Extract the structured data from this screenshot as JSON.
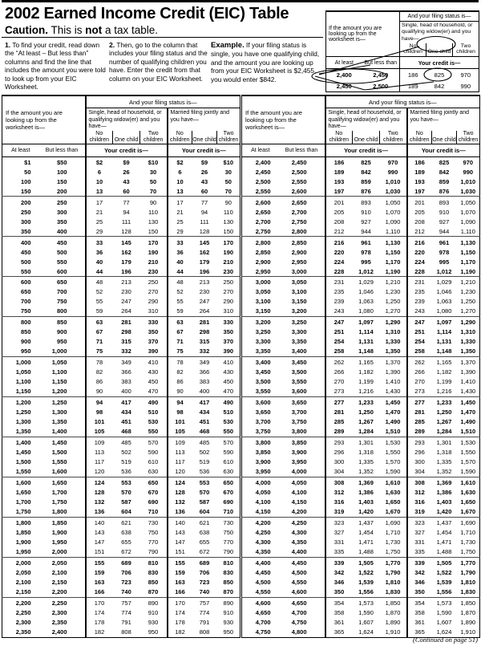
{
  "header": {
    "title": "2002 Earned Income Credit (EIC) Table",
    "caution_bold": "Caution.",
    "caution_mid": " This is ",
    "caution_not": "not",
    "caution_end": " a tax table."
  },
  "instructions": [
    {
      "num": "1.",
      "text": "To find your credit, read down the “At least – But less than” columns and find the line that includes the amount you were told to look up from your EIC Worksheet."
    },
    {
      "num": "2.",
      "text": "Then, go to the column that includes your filing status and the number of qualifying children you have. Enter the credit from that column on your EIC Worksheet."
    }
  ],
  "example": {
    "label": "Example.",
    "text": "If your filing status is single, you have one qualifying child, and the amount you are looking up from your EIC Worksheet is $2,455, you would enter $842."
  },
  "table_headers": {
    "lookup": "If the amount you are looking up from the worksheet is—",
    "filing_status": "And your filing status is—",
    "single_group": "Single, head of household, or qualifying widow(er) and you have—",
    "married_group": "Married filing jointly and you have—",
    "col_no": "No children",
    "col_one": "One child",
    "col_two": "Two children",
    "at_least": "At least",
    "but_less_than": "But less than",
    "credit": "Your credit is—"
  },
  "example_table": {
    "rows": [
      [
        "2,400",
        "2,450",
        "186",
        "825",
        "970"
      ],
      [
        "2,450",
        "2,500",
        "189",
        "842",
        "990"
      ]
    ]
  },
  "tables": {
    "left": {
      "rows": [
        [
          "$1",
          "$50",
          "$2",
          "$9",
          "$10",
          "$2",
          "$9",
          "$10"
        ],
        [
          "50",
          "100",
          "6",
          "26",
          "30",
          "6",
          "26",
          "30"
        ],
        [
          "100",
          "150",
          "10",
          "43",
          "50",
          "10",
          "43",
          "50"
        ],
        [
          "150",
          "200",
          "13",
          "60",
          "70",
          "13",
          "60",
          "70"
        ],
        [
          "200",
          "250",
          "17",
          "77",
          "90",
          "17",
          "77",
          "90"
        ],
        [
          "250",
          "300",
          "21",
          "94",
          "110",
          "21",
          "94",
          "110"
        ],
        [
          "300",
          "350",
          "25",
          "111",
          "130",
          "25",
          "111",
          "130"
        ],
        [
          "350",
          "400",
          "29",
          "128",
          "150",
          "29",
          "128",
          "150"
        ],
        [
          "400",
          "450",
          "33",
          "145",
          "170",
          "33",
          "145",
          "170"
        ],
        [
          "450",
          "500",
          "36",
          "162",
          "190",
          "36",
          "162",
          "190"
        ],
        [
          "500",
          "550",
          "40",
          "179",
          "210",
          "40",
          "179",
          "210"
        ],
        [
          "550",
          "600",
          "44",
          "196",
          "230",
          "44",
          "196",
          "230"
        ],
        [
          "600",
          "650",
          "48",
          "213",
          "250",
          "48",
          "213",
          "250"
        ],
        [
          "650",
          "700",
          "52",
          "230",
          "270",
          "52",
          "230",
          "270"
        ],
        [
          "700",
          "750",
          "55",
          "247",
          "290",
          "55",
          "247",
          "290"
        ],
        [
          "750",
          "800",
          "59",
          "264",
          "310",
          "59",
          "264",
          "310"
        ],
        [
          "800",
          "850",
          "63",
          "281",
          "330",
          "63",
          "281",
          "330"
        ],
        [
          "850",
          "900",
          "67",
          "298",
          "350",
          "67",
          "298",
          "350"
        ],
        [
          "900",
          "950",
          "71",
          "315",
          "370",
          "71",
          "315",
          "370"
        ],
        [
          "950",
          "1,000",
          "75",
          "332",
          "390",
          "75",
          "332",
          "390"
        ],
        [
          "1,000",
          "1,050",
          "78",
          "349",
          "410",
          "78",
          "349",
          "410"
        ],
        [
          "1,050",
          "1,100",
          "82",
          "366",
          "430",
          "82",
          "366",
          "430"
        ],
        [
          "1,100",
          "1,150",
          "86",
          "383",
          "450",
          "86",
          "383",
          "450"
        ],
        [
          "1,150",
          "1,200",
          "90",
          "400",
          "470",
          "90",
          "400",
          "470"
        ],
        [
          "1,200",
          "1,250",
          "94",
          "417",
          "490",
          "94",
          "417",
          "490"
        ],
        [
          "1,250",
          "1,300",
          "98",
          "434",
          "510",
          "98",
          "434",
          "510"
        ],
        [
          "1,300",
          "1,350",
          "101",
          "451",
          "530",
          "101",
          "451",
          "530"
        ],
        [
          "1,350",
          "1,400",
          "105",
          "468",
          "550",
          "105",
          "468",
          "550"
        ],
        [
          "1,400",
          "1,450",
          "109",
          "485",
          "570",
          "109",
          "485",
          "570"
        ],
        [
          "1,450",
          "1,500",
          "113",
          "502",
          "590",
          "113",
          "502",
          "590"
        ],
        [
          "1,500",
          "1,550",
          "117",
          "519",
          "610",
          "117",
          "519",
          "610"
        ],
        [
          "1,550",
          "1,600",
          "120",
          "536",
          "630",
          "120",
          "536",
          "630"
        ],
        [
          "1,600",
          "1,650",
          "124",
          "553",
          "650",
          "124",
          "553",
          "650"
        ],
        [
          "1,650",
          "1,700",
          "128",
          "570",
          "670",
          "128",
          "570",
          "670"
        ],
        [
          "1,700",
          "1,750",
          "132",
          "587",
          "690",
          "132",
          "587",
          "690"
        ],
        [
          "1,750",
          "1,800",
          "136",
          "604",
          "710",
          "136",
          "604",
          "710"
        ],
        [
          "1,800",
          "1,850",
          "140",
          "621",
          "730",
          "140",
          "621",
          "730"
        ],
        [
          "1,850",
          "1,900",
          "143",
          "638",
          "750",
          "143",
          "638",
          "750"
        ],
        [
          "1,900",
          "1,950",
          "147",
          "655",
          "770",
          "147",
          "655",
          "770"
        ],
        [
          "1,950",
          "2,000",
          "151",
          "672",
          "790",
          "151",
          "672",
          "790"
        ],
        [
          "2,000",
          "2,050",
          "155",
          "689",
          "810",
          "155",
          "689",
          "810"
        ],
        [
          "2,050",
          "2,100",
          "159",
          "706",
          "830",
          "159",
          "706",
          "830"
        ],
        [
          "2,100",
          "2,150",
          "163",
          "723",
          "850",
          "163",
          "723",
          "850"
        ],
        [
          "2,150",
          "2,200",
          "166",
          "740",
          "870",
          "166",
          "740",
          "870"
        ],
        [
          "2,200",
          "2,250",
          "170",
          "757",
          "890",
          "170",
          "757",
          "890"
        ],
        [
          "2,250",
          "2,300",
          "174",
          "774",
          "910",
          "174",
          "774",
          "910"
        ],
        [
          "2,300",
          "2,350",
          "178",
          "791",
          "930",
          "178",
          "791",
          "930"
        ],
        [
          "2,350",
          "2,400",
          "182",
          "808",
          "950",
          "182",
          "808",
          "950"
        ]
      ]
    },
    "right": {
      "rows": [
        [
          "2,400",
          "2,450",
          "186",
          "825",
          "970",
          "186",
          "825",
          "970"
        ],
        [
          "2,450",
          "2,500",
          "189",
          "842",
          "990",
          "189",
          "842",
          "990"
        ],
        [
          "2,500",
          "2,550",
          "193",
          "859",
          "1,010",
          "193",
          "859",
          "1,010"
        ],
        [
          "2,550",
          "2,600",
          "197",
          "876",
          "1,030",
          "197",
          "876",
          "1,030"
        ],
        [
          "2,600",
          "2,650",
          "201",
          "893",
          "1,050",
          "201",
          "893",
          "1,050"
        ],
        [
          "2,650",
          "2,700",
          "205",
          "910",
          "1,070",
          "205",
          "910",
          "1,070"
        ],
        [
          "2,700",
          "2,750",
          "208",
          "927",
          "1,090",
          "208",
          "927",
          "1,090"
        ],
        [
          "2,750",
          "2,800",
          "212",
          "944",
          "1,110",
          "212",
          "944",
          "1,110"
        ],
        [
          "2,800",
          "2,850",
          "216",
          "961",
          "1,130",
          "216",
          "961",
          "1,130"
        ],
        [
          "2,850",
          "2,900",
          "220",
          "978",
          "1,150",
          "220",
          "978",
          "1,150"
        ],
        [
          "2,900",
          "2,950",
          "224",
          "995",
          "1,170",
          "224",
          "995",
          "1,170"
        ],
        [
          "2,950",
          "3,000",
          "228",
          "1,012",
          "1,190",
          "228",
          "1,012",
          "1,190"
        ],
        [
          "3,000",
          "3,050",
          "231",
          "1,029",
          "1,210",
          "231",
          "1,029",
          "1,210"
        ],
        [
          "3,050",
          "3,100",
          "235",
          "1,046",
          "1,230",
          "235",
          "1,046",
          "1,230"
        ],
        [
          "3,100",
          "3,150",
          "239",
          "1,063",
          "1,250",
          "239",
          "1,063",
          "1,250"
        ],
        [
          "3,150",
          "3,200",
          "243",
          "1,080",
          "1,270",
          "243",
          "1,080",
          "1,270"
        ],
        [
          "3,200",
          "3,250",
          "247",
          "1,097",
          "1,290",
          "247",
          "1,097",
          "1,290"
        ],
        [
          "3,250",
          "3,300",
          "251",
          "1,114",
          "1,310",
          "251",
          "1,114",
          "1,310"
        ],
        [
          "3,300",
          "3,350",
          "254",
          "1,131",
          "1,330",
          "254",
          "1,131",
          "1,330"
        ],
        [
          "3,350",
          "3,400",
          "258",
          "1,148",
          "1,350",
          "258",
          "1,148",
          "1,350"
        ],
        [
          "3,400",
          "3,450",
          "262",
          "1,165",
          "1,370",
          "262",
          "1,165",
          "1,370"
        ],
        [
          "3,450",
          "3,500",
          "266",
          "1,182",
          "1,390",
          "266",
          "1,182",
          "1,390"
        ],
        [
          "3,500",
          "3,550",
          "270",
          "1,199",
          "1,410",
          "270",
          "1,199",
          "1,410"
        ],
        [
          "3,550",
          "3,600",
          "273",
          "1,216",
          "1,430",
          "273",
          "1,216",
          "1,430"
        ],
        [
          "3,600",
          "3,650",
          "277",
          "1,233",
          "1,450",
          "277",
          "1,233",
          "1,450"
        ],
        [
          "3,650",
          "3,700",
          "281",
          "1,250",
          "1,470",
          "281",
          "1,250",
          "1,470"
        ],
        [
          "3,700",
          "3,750",
          "285",
          "1,267",
          "1,490",
          "285",
          "1,267",
          "1,490"
        ],
        [
          "3,750",
          "3,800",
          "289",
          "1,284",
          "1,510",
          "289",
          "1,284",
          "1,510"
        ],
        [
          "3,800",
          "3,850",
          "293",
          "1,301",
          "1,530",
          "293",
          "1,301",
          "1,530"
        ],
        [
          "3,850",
          "3,900",
          "296",
          "1,318",
          "1,550",
          "296",
          "1,318",
          "1,550"
        ],
        [
          "3,900",
          "3,950",
          "300",
          "1,335",
          "1,570",
          "300",
          "1,335",
          "1,570"
        ],
        [
          "3,950",
          "4,000",
          "304",
          "1,352",
          "1,590",
          "304",
          "1,352",
          "1,590"
        ],
        [
          "4,000",
          "4,050",
          "308",
          "1,369",
          "1,610",
          "308",
          "1,369",
          "1,610"
        ],
        [
          "4,050",
          "4,100",
          "312",
          "1,386",
          "1,630",
          "312",
          "1,386",
          "1,630"
        ],
        [
          "4,100",
          "4,150",
          "316",
          "1,403",
          "1,650",
          "316",
          "1,403",
          "1,650"
        ],
        [
          "4,150",
          "4,200",
          "319",
          "1,420",
          "1,670",
          "319",
          "1,420",
          "1,670"
        ],
        [
          "4,200",
          "4,250",
          "323",
          "1,437",
          "1,690",
          "323",
          "1,437",
          "1,690"
        ],
        [
          "4,250",
          "4,300",
          "327",
          "1,454",
          "1,710",
          "327",
          "1,454",
          "1,710"
        ],
        [
          "4,300",
          "4,350",
          "331",
          "1,471",
          "1,730",
          "331",
          "1,471",
          "1,730"
        ],
        [
          "4,350",
          "4,400",
          "335",
          "1,488",
          "1,750",
          "335",
          "1,488",
          "1,750"
        ],
        [
          "4,400",
          "4,450",
          "339",
          "1,505",
          "1,770",
          "339",
          "1,505",
          "1,770"
        ],
        [
          "4,450",
          "4,500",
          "342",
          "1,522",
          "1,790",
          "342",
          "1,522",
          "1,790"
        ],
        [
          "4,500",
          "4,550",
          "346",
          "1,539",
          "1,810",
          "346",
          "1,539",
          "1,810"
        ],
        [
          "4,550",
          "4,600",
          "350",
          "1,556",
          "1,830",
          "350",
          "1,556",
          "1,830"
        ],
        [
          "4,600",
          "4,650",
          "354",
          "1,573",
          "1,850",
          "354",
          "1,573",
          "1,850"
        ],
        [
          "4,650",
          "4,700",
          "358",
          "1,590",
          "1,870",
          "358",
          "1,590",
          "1,870"
        ],
        [
          "4,700",
          "4,750",
          "361",
          "1,607",
          "1,890",
          "361",
          "1,607",
          "1,890"
        ],
        [
          "4,750",
          "4,800",
          "365",
          "1,624",
          "1,910",
          "365",
          "1,624",
          "1,910"
        ]
      ]
    }
  },
  "footer": "(Continued on page 51)"
}
